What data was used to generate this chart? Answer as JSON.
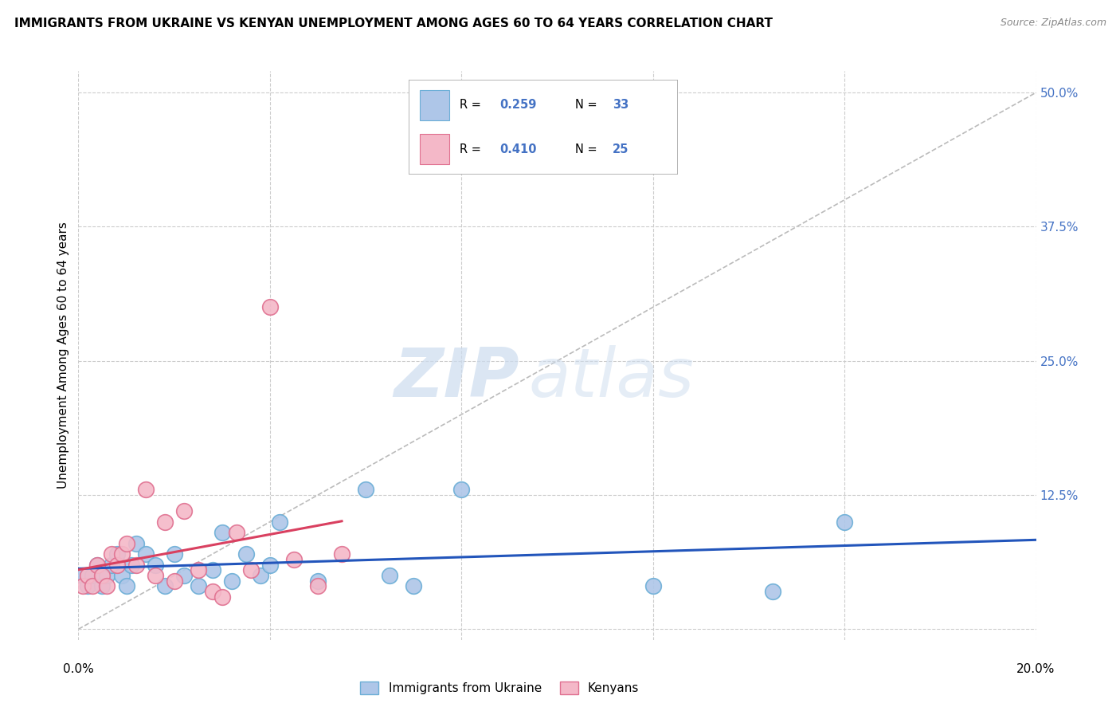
{
  "title": "IMMIGRANTS FROM UKRAINE VS KENYAN UNEMPLOYMENT AMONG AGES 60 TO 64 YEARS CORRELATION CHART",
  "source": "Source: ZipAtlas.com",
  "ylabel": "Unemployment Among Ages 60 to 64 years",
  "x_min": 0.0,
  "x_max": 0.2,
  "y_min": -0.01,
  "y_max": 0.52,
  "x_ticks": [
    0.0,
    0.04,
    0.08,
    0.12,
    0.16,
    0.2
  ],
  "x_tick_labels": [
    "0.0%",
    "",
    "",
    "",
    "",
    "20.0%"
  ],
  "y_ticks_right": [
    0.0,
    0.125,
    0.25,
    0.375,
    0.5
  ],
  "ukraine_scatter_x": [
    0.001,
    0.002,
    0.003,
    0.004,
    0.005,
    0.006,
    0.007,
    0.008,
    0.009,
    0.01,
    0.011,
    0.012,
    0.014,
    0.016,
    0.018,
    0.02,
    0.022,
    0.025,
    0.028,
    0.03,
    0.032,
    0.035,
    0.038,
    0.04,
    0.042,
    0.05,
    0.06,
    0.065,
    0.07,
    0.08,
    0.12,
    0.145,
    0.16
  ],
  "ukraine_scatter_y": [
    0.05,
    0.04,
    0.05,
    0.06,
    0.04,
    0.05,
    0.06,
    0.07,
    0.05,
    0.04,
    0.06,
    0.08,
    0.07,
    0.06,
    0.04,
    0.07,
    0.05,
    0.04,
    0.055,
    0.09,
    0.045,
    0.07,
    0.05,
    0.06,
    0.1,
    0.045,
    0.13,
    0.05,
    0.04,
    0.13,
    0.04,
    0.035,
    0.1
  ],
  "kenya_scatter_x": [
    0.001,
    0.002,
    0.003,
    0.004,
    0.005,
    0.006,
    0.007,
    0.008,
    0.009,
    0.01,
    0.012,
    0.014,
    0.016,
    0.018,
    0.02,
    0.022,
    0.025,
    0.028,
    0.03,
    0.033,
    0.036,
    0.04,
    0.045,
    0.05,
    0.055
  ],
  "kenya_scatter_y": [
    0.04,
    0.05,
    0.04,
    0.06,
    0.05,
    0.04,
    0.07,
    0.06,
    0.07,
    0.08,
    0.06,
    0.13,
    0.05,
    0.1,
    0.045,
    0.11,
    0.055,
    0.035,
    0.03,
    0.09,
    0.055,
    0.3,
    0.065,
    0.04,
    0.07
  ],
  "ukraine_color": "#aec6e8",
  "ukraine_edge_color": "#6baed6",
  "kenya_color": "#f4b8c8",
  "kenya_edge_color": "#e07090",
  "ukraine_line_color": "#2255bb",
  "kenya_line_color": "#d94060",
  "diag_line_color": "#bbbbbb",
  "legend_blue": "#4472c4",
  "R_ukraine": "0.259",
  "N_ukraine": "33",
  "R_kenya": "0.410",
  "N_kenya": "25",
  "watermark_zip": "ZIP",
  "watermark_atlas": "atlas",
  "legend_ukraine": "Immigrants from Ukraine",
  "legend_kenya": "Kenyans",
  "background_color": "#ffffff",
  "grid_color": "#cccccc"
}
